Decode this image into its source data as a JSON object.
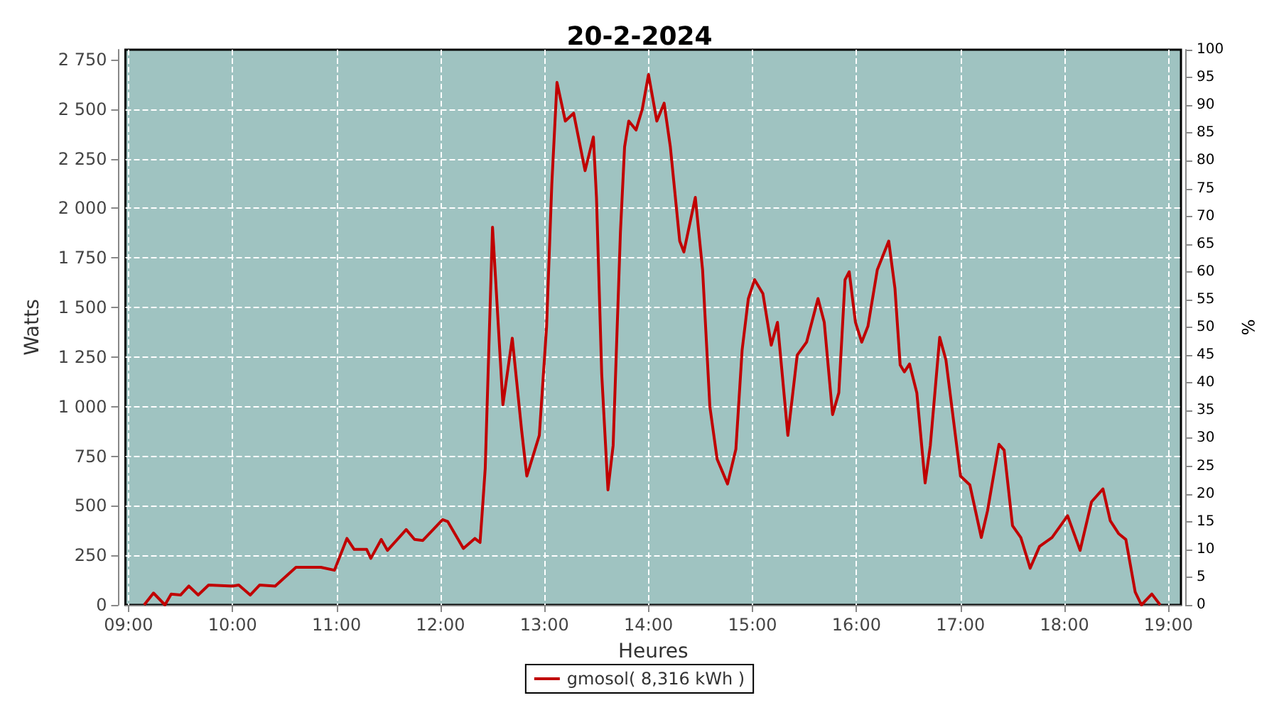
{
  "chart_data": {
    "type": "line",
    "title": "20-2-2024",
    "xlabel": "Heures",
    "ylabel": "Watts",
    "y2label": "%",
    "xlim": [
      8.97,
      19.12
    ],
    "xticks": [
      {
        "value": 9,
        "label": "09:00"
      },
      {
        "value": 10,
        "label": "10:00"
      },
      {
        "value": 11,
        "label": "11:00"
      },
      {
        "value": 12,
        "label": "12:00"
      },
      {
        "value": 13,
        "label": "13:00"
      },
      {
        "value": 14,
        "label": "14:00"
      },
      {
        "value": 15,
        "label": "15:00"
      },
      {
        "value": 16,
        "label": "16:00"
      },
      {
        "value": 17,
        "label": "17:00"
      },
      {
        "value": 18,
        "label": "18:00"
      },
      {
        "value": 19,
        "label": "19:00"
      }
    ],
    "ylim": [
      0,
      2800
    ],
    "yticks": [
      0,
      250,
      500,
      750,
      {
        "value": 1000,
        "label": "1 000"
      },
      {
        "value": 1250,
        "label": "1 250"
      },
      {
        "value": 1500,
        "label": "1 500"
      },
      {
        "value": 1750,
        "label": "1 750"
      },
      {
        "value": 2000,
        "label": "2 000"
      },
      {
        "value": 2250,
        "label": "2 250"
      },
      {
        "value": 2500,
        "label": "2 500"
      },
      {
        "value": 2750,
        "label": "2 750"
      }
    ],
    "y2lim": [
      0,
      100
    ],
    "y2ticks": [
      0,
      5,
      10,
      15,
      20,
      25,
      30,
      35,
      40,
      45,
      50,
      55,
      60,
      65,
      70,
      75,
      80,
      85,
      90,
      95,
      100
    ],
    "grid": true,
    "legend": "bottom",
    "marker": "none",
    "line_style": "solid",
    "series": [
      {
        "name": "gmosol( 8,316 kWh )",
        "color": "#c00000",
        "x": [
          9.15,
          9.24,
          9.35,
          9.41,
          9.5,
          9.58,
          9.67,
          9.77,
          10.0,
          10.06,
          10.17,
          10.26,
          10.41,
          10.61,
          10.85,
          10.98,
          11.1,
          11.17,
          11.29,
          11.33,
          11.43,
          11.49,
          11.67,
          11.75,
          11.83,
          12.02,
          12.07,
          12.22,
          12.33,
          12.38,
          12.4,
          12.43,
          12.5,
          12.53,
          12.6,
          12.69,
          12.78,
          12.83,
          12.95,
          13.02,
          13.07,
          13.12,
          13.2,
          13.28,
          13.39,
          13.47,
          13.5,
          13.55,
          13.61,
          13.66,
          13.73,
          13.77,
          13.81,
          13.88,
          13.94,
          14.0,
          14.08,
          14.15,
          14.21,
          14.3,
          14.34,
          14.45,
          14.52,
          14.59,
          14.66,
          14.76,
          14.84,
          14.9,
          14.96,
          15.02,
          15.1,
          15.18,
          15.24,
          15.34,
          15.43,
          15.52,
          15.63,
          15.69,
          15.77,
          15.83,
          15.89,
          15.93,
          15.99,
          16.05,
          16.11,
          16.2,
          16.31,
          16.37,
          16.42,
          16.46,
          16.51,
          16.58,
          16.66,
          16.71,
          16.8,
          16.86,
          17.0,
          17.09,
          17.2,
          17.26,
          17.37,
          17.42,
          17.5,
          17.58,
          17.67,
          17.76,
          17.88,
          18.03,
          18.15,
          18.26,
          18.37,
          18.44,
          18.52,
          18.59,
          18.68,
          18.74,
          18.84,
          18.92
        ],
        "values": [
          0,
          60,
          0,
          55,
          50,
          95,
          50,
          100,
          95,
          100,
          50,
          100,
          95,
          190,
          190,
          175,
          335,
          280,
          280,
          235,
          330,
          275,
          380,
          330,
          325,
          430,
          420,
          285,
          335,
          315,
          460,
          690,
          1905,
          1640,
          1010,
          1345,
          880,
          650,
          855,
          1405,
          2120,
          2635,
          2440,
          2480,
          2190,
          2360,
          2050,
          1165,
          580,
          805,
          1880,
          2310,
          2440,
          2395,
          2500,
          2675,
          2440,
          2530,
          2310,
          1835,
          1780,
          2055,
          1690,
          1000,
          735,
          610,
          785,
          1285,
          1545,
          1640,
          1570,
          1310,
          1425,
          855,
          1260,
          1325,
          1545,
          1425,
          960,
          1070,
          1640,
          1680,
          1425,
          1325,
          1405,
          1690,
          1835,
          1595,
          1210,
          1175,
          1215,
          1070,
          615,
          805,
          1350,
          1235,
          650,
          605,
          340,
          475,
          810,
          780,
          400,
          340,
          185,
          295,
          340,
          450,
          275,
          520,
          585,
          425,
          360,
          330,
          65,
          0,
          55,
          0
        ]
      }
    ]
  }
}
